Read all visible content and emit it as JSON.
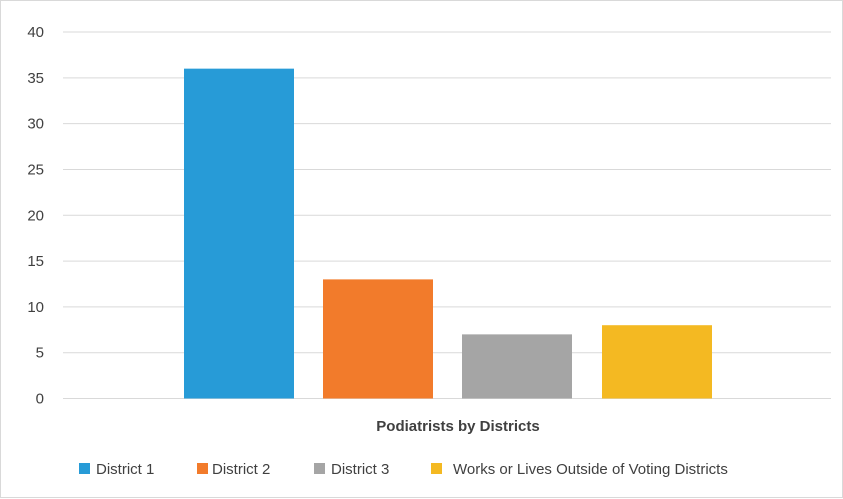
{
  "chart_data": {
    "type": "bar",
    "title": "",
    "xlabel": "Podiatrists by Districts",
    "ylabel": "",
    "categories": [
      "Podiatrists by Districts"
    ],
    "series": [
      {
        "name": "District 1",
        "values": [
          36
        ],
        "color": "#279bd7"
      },
      {
        "name": "District 2",
        "values": [
          13
        ],
        "color": "#f27b2b"
      },
      {
        "name": "District 3",
        "values": [
          7
        ],
        "color": "#a5a5a5"
      },
      {
        "name": "Works or Lives Outside of Voting Districts",
        "values": [
          8
        ],
        "color": "#f4b922"
      }
    ],
    "ylim": [
      0,
      40
    ],
    "yticks": [
      0,
      5,
      10,
      15,
      20,
      25,
      30,
      35,
      40
    ],
    "grid": true,
    "gridline_color": "#d9d9d9",
    "legend_position": "bottom"
  }
}
